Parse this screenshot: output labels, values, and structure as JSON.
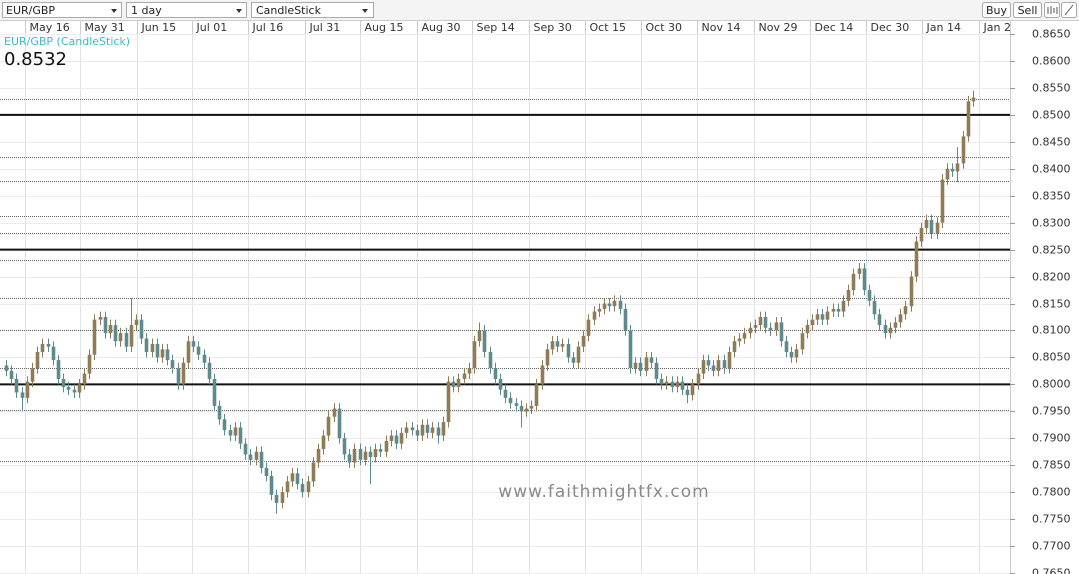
{
  "toolbar": {
    "symbol": "EUR/GBP",
    "interval": "1 day",
    "style": "CandleStick",
    "buy": "Buy",
    "sell": "Sell"
  },
  "chart_data": {
    "type": "candlestick",
    "legend_label": "EUR/GBP (CandleStick)",
    "price_label": "0.8532",
    "watermark": "www.faithmightfx.com",
    "up_color": "#8f7b55",
    "down_color": "#5e8a8e",
    "grid": true,
    "xlim": [
      -1.15,
      193.1
    ],
    "ylim": [
      0.765,
      0.865
    ],
    "xticks": [
      {
        "value": 3.7,
        "label": "May 16"
      },
      {
        "value": 14.2,
        "label": "May 31"
      },
      {
        "value": 25.2,
        "label": "Jun 15"
      },
      {
        "value": 35.8,
        "label": "Jul 01"
      },
      {
        "value": 46.5,
        "label": "Jul 16"
      },
      {
        "value": 57.5,
        "label": "Jul 31"
      },
      {
        "value": 68.1,
        "label": "Aug 15"
      },
      {
        "value": 79.0,
        "label": "Aug 30"
      },
      {
        "value": 89.6,
        "label": "Sep 14"
      },
      {
        "value": 100.6,
        "label": "Sep 30"
      },
      {
        "value": 111.3,
        "label": "Oct 15"
      },
      {
        "value": 122.1,
        "label": "Oct 30"
      },
      {
        "value": 132.9,
        "label": "Nov 14"
      },
      {
        "value": 143.8,
        "label": "Nov 29"
      },
      {
        "value": 154.6,
        "label": "Dec 14"
      },
      {
        "value": 165.4,
        "label": "Dec 30"
      },
      {
        "value": 176.2,
        "label": "Jan 14"
      },
      {
        "value": 187.1,
        "label": "Jan 2"
      }
    ],
    "yticks": [
      {
        "value": 0.765,
        "label": "0.7650"
      },
      {
        "value": 0.77,
        "label": "0.7700"
      },
      {
        "value": 0.775,
        "label": "0.7750"
      },
      {
        "value": 0.78,
        "label": "0.7800"
      },
      {
        "value": 0.785,
        "label": "0.7850"
      },
      {
        "value": 0.79,
        "label": "0.7900"
      },
      {
        "value": 0.795,
        "label": "0.7950"
      },
      {
        "value": 0.8,
        "label": "0.8000"
      },
      {
        "value": 0.805,
        "label": "0.8050"
      },
      {
        "value": 0.81,
        "label": "0.8100"
      },
      {
        "value": 0.815,
        "label": "0.8150"
      },
      {
        "value": 0.82,
        "label": "0.8200"
      },
      {
        "value": 0.825,
        "label": "0.8250"
      },
      {
        "value": 0.83,
        "label": "0.8300"
      },
      {
        "value": 0.835,
        "label": "0.8350"
      },
      {
        "value": 0.84,
        "label": "0.8400"
      },
      {
        "value": 0.845,
        "label": "0.8450"
      },
      {
        "value": 0.85,
        "label": "0.8500"
      },
      {
        "value": 0.855,
        "label": "0.8550"
      },
      {
        "value": 0.86,
        "label": "0.8600"
      },
      {
        "value": 0.865,
        "label": "0.8650"
      }
    ],
    "solid_levels": [
      0.85,
      0.825,
      0.8
    ],
    "dotted_levels": [
      0.8529,
      0.8422,
      0.8377,
      0.8312,
      0.8281,
      0.8231,
      0.816,
      0.8101,
      0.803,
      0.7952,
      0.7858
    ],
    "open": [
      0.8035,
      0.8025,
      0.801,
      0.7985,
      0.7975,
      0.8005,
      0.803,
      0.806,
      0.8075,
      0.807,
      0.8045,
      0.801,
      0.7995,
      0.799,
      0.7985,
      0.8,
      0.802,
      0.8055,
      0.812,
      0.8125,
      0.8095,
      0.811,
      0.808,
      0.8095,
      0.807,
      0.811,
      0.812,
      0.8085,
      0.806,
      0.8075,
      0.805,
      0.8065,
      0.8045,
      0.803,
      0.8,
      0.804,
      0.808,
      0.807,
      0.8055,
      0.804,
      0.801,
      0.796,
      0.7935,
      0.7915,
      0.7905,
      0.792,
      0.789,
      0.787,
      0.786,
      0.7875,
      0.7845,
      0.783,
      0.7795,
      0.778,
      0.78,
      0.782,
      0.7835,
      0.7815,
      0.78,
      0.782,
      0.7855,
      0.788,
      0.7905,
      0.794,
      0.7955,
      0.79,
      0.787,
      0.7855,
      0.788,
      0.786,
      0.7875,
      0.7865,
      0.788,
      0.7875,
      0.7895,
      0.7905,
      0.789,
      0.791,
      0.792,
      0.7915,
      0.7905,
      0.7925,
      0.791,
      0.792,
      0.7905,
      0.793,
      0.8005,
      0.7995,
      0.801,
      0.802,
      0.803,
      0.808,
      0.81,
      0.806,
      0.803,
      0.801,
      0.799,
      0.7975,
      0.7965,
      0.796,
      0.795,
      0.7955,
      0.796,
      0.8,
      0.8035,
      0.8065,
      0.808,
      0.807,
      0.8075,
      0.805,
      0.804,
      0.807,
      0.809,
      0.812,
      0.8135,
      0.814,
      0.815,
      0.8145,
      0.8155,
      0.814,
      0.81,
      0.803,
      0.804,
      0.8025,
      0.805,
      0.804,
      0.801,
      0.8,
      0.8005,
      0.7995,
      0.8005,
      0.799,
      0.798,
      0.8,
      0.802,
      0.8045,
      0.8035,
      0.8025,
      0.8045,
      0.803,
      0.806,
      0.808,
      0.8085,
      0.8095,
      0.8105,
      0.811,
      0.8125,
      0.8105,
      0.81,
      0.8115,
      0.808,
      0.806,
      0.805,
      0.8065,
      0.8095,
      0.811,
      0.812,
      0.813,
      0.812,
      0.8135,
      0.814,
      0.8135,
      0.8155,
      0.8175,
      0.8205,
      0.8215,
      0.8175,
      0.8155,
      0.813,
      0.811,
      0.8095,
      0.8105,
      0.8115,
      0.813,
      0.8145,
      0.82,
      0.8265,
      0.829,
      0.8305,
      0.828,
      0.83,
      0.838,
      0.84,
      0.8395,
      0.841,
      0.846,
      0.8525
    ],
    "high": [
      0.8045,
      0.8035,
      0.802,
      0.7995,
      0.8015,
      0.804,
      0.807,
      0.8085,
      0.8085,
      0.808,
      0.8055,
      0.802,
      0.8005,
      0.8,
      0.801,
      0.803,
      0.8065,
      0.813,
      0.8135,
      0.8135,
      0.812,
      0.812,
      0.8105,
      0.8105,
      0.816,
      0.813,
      0.813,
      0.8095,
      0.8085,
      0.8085,
      0.8075,
      0.8075,
      0.8055,
      0.804,
      0.805,
      0.809,
      0.809,
      0.808,
      0.8065,
      0.805,
      0.802,
      0.797,
      0.7945,
      0.7925,
      0.793,
      0.793,
      0.79,
      0.788,
      0.7885,
      0.7885,
      0.7855,
      0.784,
      0.7805,
      0.781,
      0.783,
      0.7845,
      0.7845,
      0.7825,
      0.783,
      0.7865,
      0.789,
      0.7915,
      0.795,
      0.7965,
      0.7965,
      0.791,
      0.788,
      0.789,
      0.789,
      0.7885,
      0.7885,
      0.789,
      0.789,
      0.7905,
      0.7915,
      0.7915,
      0.792,
      0.793,
      0.793,
      0.7925,
      0.7935,
      0.7935,
      0.793,
      0.793,
      0.794,
      0.8015,
      0.8015,
      0.802,
      0.803,
      0.804,
      0.809,
      0.8115,
      0.811,
      0.807,
      0.804,
      0.802,
      0.8,
      0.7985,
      0.7975,
      0.797,
      0.7965,
      0.797,
      0.801,
      0.8045,
      0.8075,
      0.809,
      0.809,
      0.8085,
      0.8085,
      0.806,
      0.808,
      0.81,
      0.813,
      0.8145,
      0.815,
      0.816,
      0.816,
      0.8165,
      0.8165,
      0.815,
      0.811,
      0.805,
      0.805,
      0.806,
      0.806,
      0.805,
      0.802,
      0.8015,
      0.8015,
      0.8015,
      0.8015,
      0.8,
      0.801,
      0.803,
      0.8055,
      0.8055,
      0.8045,
      0.8055,
      0.8055,
      0.807,
      0.809,
      0.8095,
      0.8105,
      0.8115,
      0.812,
      0.8135,
      0.8135,
      0.8115,
      0.8125,
      0.8125,
      0.809,
      0.807,
      0.8075,
      0.8105,
      0.812,
      0.813,
      0.814,
      0.814,
      0.8145,
      0.815,
      0.815,
      0.8165,
      0.8185,
      0.8215,
      0.8225,
      0.8225,
      0.8185,
      0.8165,
      0.814,
      0.812,
      0.8115,
      0.8125,
      0.814,
      0.8155,
      0.821,
      0.8275,
      0.83,
      0.8315,
      0.8315,
      0.831,
      0.839,
      0.841,
      0.841,
      0.844,
      0.847,
      0.8535,
      0.8545
    ],
    "low": [
      0.8015,
      0.8,
      0.7975,
      0.795,
      0.7965,
      0.7995,
      0.802,
      0.805,
      0.806,
      0.8035,
      0.8,
      0.7985,
      0.798,
      0.7975,
      0.7975,
      0.799,
      0.801,
      0.8045,
      0.811,
      0.8085,
      0.8085,
      0.807,
      0.807,
      0.806,
      0.806,
      0.81,
      0.8075,
      0.805,
      0.805,
      0.804,
      0.804,
      0.8035,
      0.802,
      0.799,
      0.799,
      0.803,
      0.806,
      0.8045,
      0.803,
      0.8,
      0.795,
      0.7925,
      0.7905,
      0.7895,
      0.7895,
      0.788,
      0.786,
      0.785,
      0.785,
      0.7835,
      0.782,
      0.7785,
      0.776,
      0.777,
      0.779,
      0.781,
      0.7805,
      0.779,
      0.779,
      0.781,
      0.7845,
      0.787,
      0.7895,
      0.793,
      0.789,
      0.786,
      0.7845,
      0.7845,
      0.785,
      0.785,
      0.7815,
      0.7855,
      0.7865,
      0.7865,
      0.7885,
      0.788,
      0.788,
      0.79,
      0.7905,
      0.7895,
      0.7895,
      0.79,
      0.79,
      0.789,
      0.7895,
      0.792,
      0.7985,
      0.7985,
      0.8,
      0.801,
      0.802,
      0.807,
      0.805,
      0.802,
      0.8,
      0.798,
      0.7965,
      0.7955,
      0.795,
      0.792,
      0.794,
      0.7945,
      0.795,
      0.799,
      0.8025,
      0.8055,
      0.806,
      0.806,
      0.804,
      0.803,
      0.803,
      0.806,
      0.808,
      0.811,
      0.8125,
      0.813,
      0.8135,
      0.8135,
      0.813,
      0.809,
      0.802,
      0.802,
      0.8015,
      0.8015,
      0.803,
      0.8,
      0.799,
      0.799,
      0.7985,
      0.7985,
      0.798,
      0.7965,
      0.797,
      0.799,
      0.801,
      0.8025,
      0.8015,
      0.8015,
      0.802,
      0.802,
      0.805,
      0.807,
      0.8075,
      0.8085,
      0.8095,
      0.81,
      0.8095,
      0.809,
      0.809,
      0.807,
      0.805,
      0.804,
      0.804,
      0.8055,
      0.8085,
      0.81,
      0.811,
      0.811,
      0.811,
      0.8125,
      0.8125,
      0.8125,
      0.8145,
      0.8165,
      0.8195,
      0.8165,
      0.8145,
      0.812,
      0.81,
      0.8085,
      0.8085,
      0.8095,
      0.8105,
      0.812,
      0.8135,
      0.819,
      0.8255,
      0.828,
      0.827,
      0.827,
      0.829,
      0.837,
      0.8385,
      0.8375,
      0.84,
      0.845,
      0.8515
    ],
    "close": [
      0.8025,
      0.801,
      0.7985,
      0.7975,
      0.8005,
      0.803,
      0.806,
      0.8075,
      0.807,
      0.8045,
      0.801,
      0.7995,
      0.799,
      0.7985,
      0.8,
      0.802,
      0.8055,
      0.812,
      0.8125,
      0.8095,
      0.811,
      0.808,
      0.8095,
      0.807,
      0.811,
      0.812,
      0.8085,
      0.806,
      0.8075,
      0.805,
      0.8065,
      0.8045,
      0.803,
      0.8,
      0.804,
      0.808,
      0.807,
      0.8055,
      0.804,
      0.801,
      0.796,
      0.7935,
      0.7915,
      0.7905,
      0.792,
      0.789,
      0.787,
      0.786,
      0.7875,
      0.7845,
      0.783,
      0.7795,
      0.778,
      0.78,
      0.782,
      0.7835,
      0.7815,
      0.78,
      0.782,
      0.7855,
      0.788,
      0.7905,
      0.794,
      0.7955,
      0.79,
      0.787,
      0.7855,
      0.788,
      0.786,
      0.7875,
      0.7865,
      0.788,
      0.7875,
      0.7895,
      0.7905,
      0.789,
      0.791,
      0.792,
      0.7915,
      0.7905,
      0.7925,
      0.791,
      0.792,
      0.7905,
      0.793,
      0.8005,
      0.7995,
      0.801,
      0.802,
      0.803,
      0.808,
      0.81,
      0.806,
      0.803,
      0.801,
      0.799,
      0.7975,
      0.7965,
      0.796,
      0.795,
      0.7955,
      0.796,
      0.8,
      0.8035,
      0.8065,
      0.808,
      0.807,
      0.8075,
      0.805,
      0.804,
      0.807,
      0.809,
      0.812,
      0.8135,
      0.814,
      0.815,
      0.8145,
      0.8155,
      0.814,
      0.81,
      0.803,
      0.804,
      0.8025,
      0.805,
      0.804,
      0.801,
      0.8,
      0.8005,
      0.7995,
      0.8005,
      0.799,
      0.798,
      0.8,
      0.802,
      0.8045,
      0.8035,
      0.8025,
      0.8045,
      0.803,
      0.806,
      0.808,
      0.8085,
      0.8095,
      0.8105,
      0.811,
      0.8125,
      0.8105,
      0.81,
      0.8115,
      0.808,
      0.806,
      0.805,
      0.8065,
      0.8095,
      0.811,
      0.812,
      0.813,
      0.812,
      0.8135,
      0.814,
      0.8135,
      0.8155,
      0.8175,
      0.8205,
      0.8215,
      0.8175,
      0.8155,
      0.813,
      0.811,
      0.8095,
      0.8105,
      0.8115,
      0.813,
      0.8145,
      0.82,
      0.8265,
      0.829,
      0.8305,
      0.828,
      0.83,
      0.838,
      0.84,
      0.8395,
      0.841,
      0.846,
      0.8525,
      0.8532
    ]
  }
}
